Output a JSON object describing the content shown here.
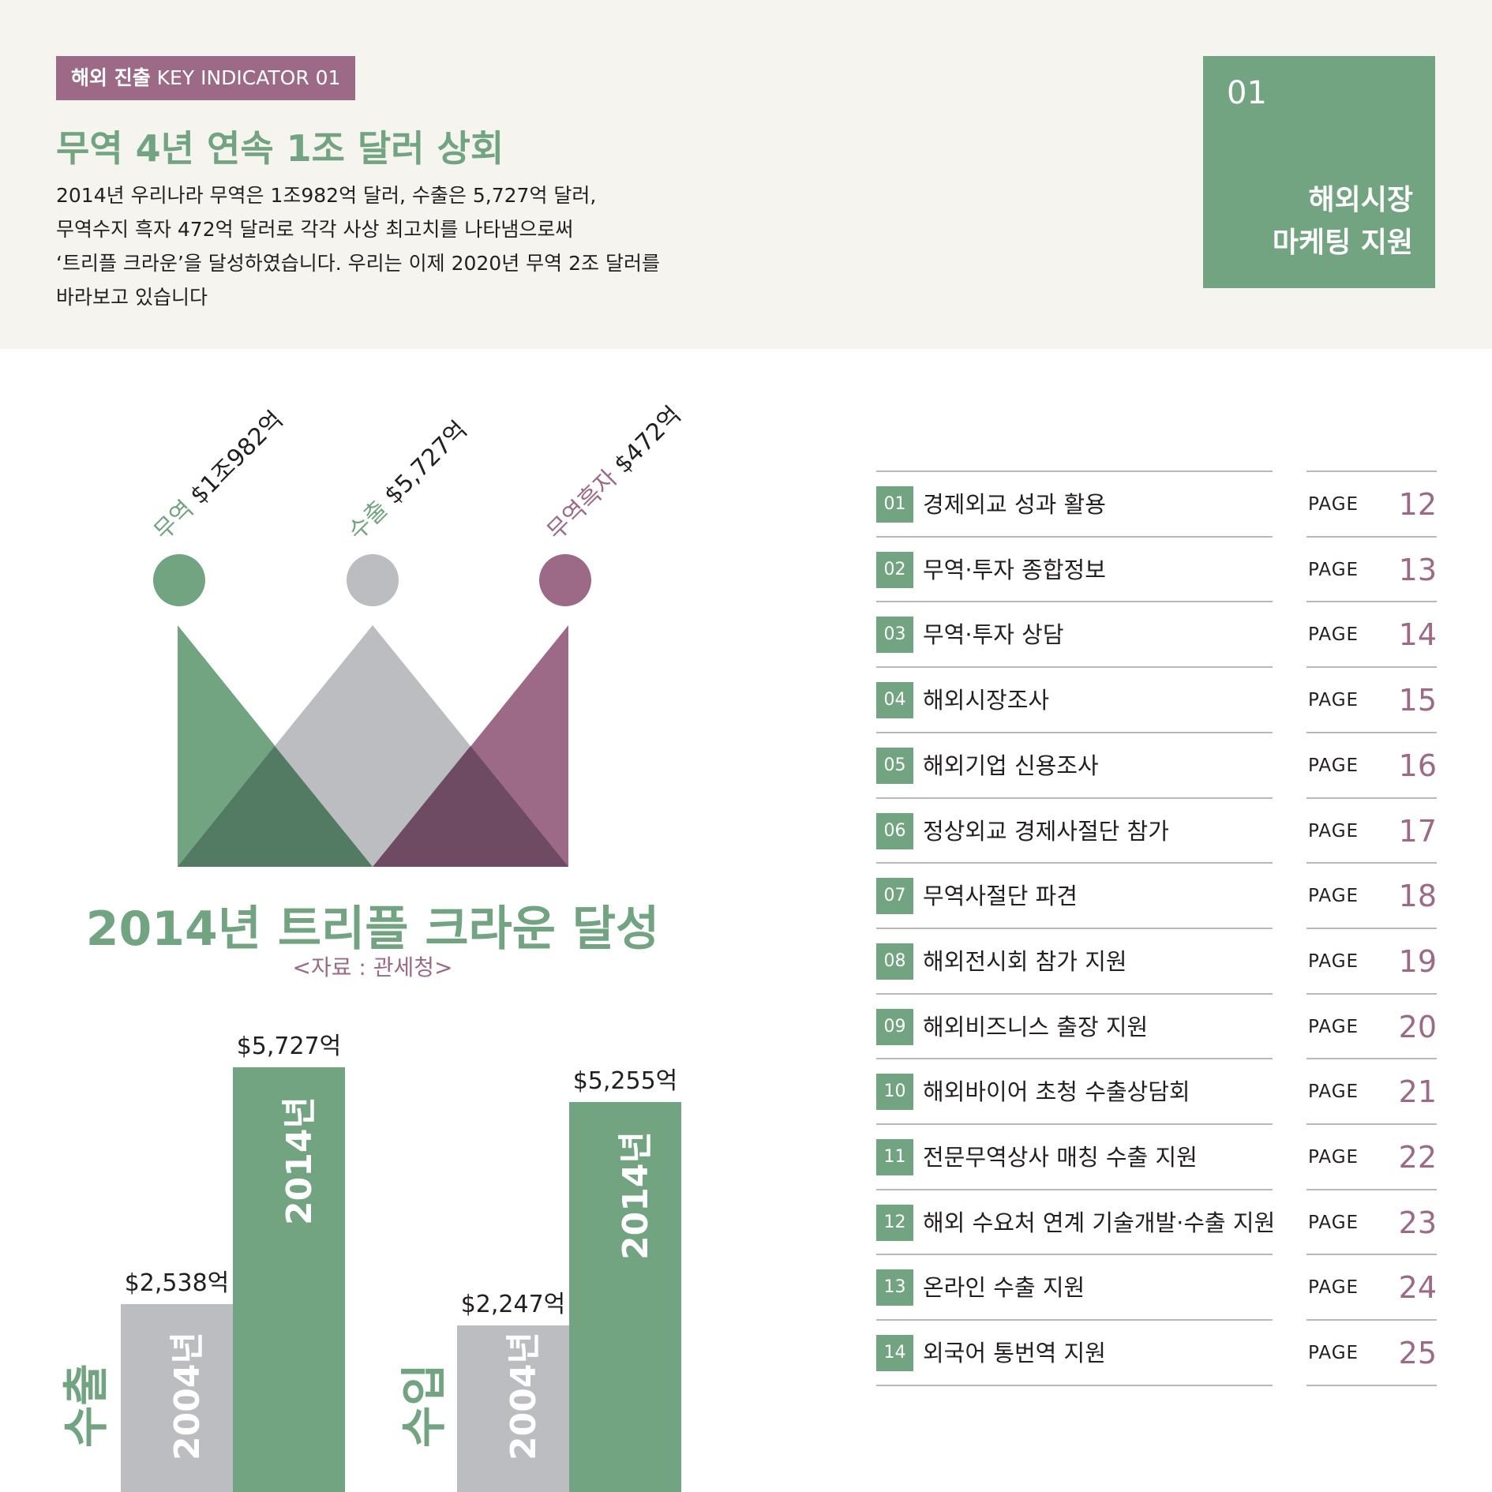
{
  "header": {
    "tag_bold": "해외 진출",
    "tag_rest": " KEY INDICATOR 01",
    "title": "무역 4년 연속 1조 달러 상회",
    "desc": [
      "2014년 우리나라 무역은 1조982억 달러, 수출은 5,727억 달러,",
      "무역수지 흑자 472억 달러로 각각 사상 최고치를 나타냄으로써",
      "‘트리플 크라운’을 달성하였습니다. 우리는 이제 2020년 무역 2조 달러를",
      "바라보고 있습니다"
    ],
    "section_number": "01",
    "section_title": [
      "해외시장",
      "마케팅 지원"
    ]
  },
  "crown": {
    "labels": [
      {
        "name": "무역",
        "value": "$1조982억",
        "color": "#72a481"
      },
      {
        "name": "수출",
        "value": "$5,727억",
        "color": "#72a481"
      },
      {
        "name": "무역흑자",
        "value": "$472억",
        "color": "#9c6a86"
      }
    ],
    "title": "2014년 트리플 크라운 달성",
    "source": "<자료 : 관세청>"
  },
  "colors": {
    "green": "#72a481",
    "gray": "#bcbdc0",
    "purple": "#9c6a86",
    "dark_green": "#537b64",
    "dark_purple": "#6e4b63",
    "header_bg": "#f5f4ef"
  },
  "chart_data": {
    "type": "bar",
    "groups": [
      {
        "name": "수출",
        "bars": [
          {
            "year": "2004년",
            "value": 2538,
            "label": "$2,538억",
            "color": "#bcbdc0"
          },
          {
            "year": "2014년",
            "value": 5727,
            "label": "$5,727억",
            "color": "#72a481"
          }
        ]
      },
      {
        "name": "수입",
        "bars": [
          {
            "year": "2004년",
            "value": 2247,
            "label": "$2,247억",
            "color": "#bcbdc0"
          },
          {
            "year": "2014년",
            "value": 5255,
            "label": "$5,255억",
            "color": "#72a481"
          }
        ]
      }
    ]
  },
  "toc": [
    {
      "num": "01",
      "label": "경제외교 성과 활용",
      "page_label": "PAGE",
      "page": "12"
    },
    {
      "num": "02",
      "label": "무역·투자 종합정보",
      "page_label": "PAGE",
      "page": "13"
    },
    {
      "num": "03",
      "label": "무역·투자 상담",
      "page_label": "PAGE",
      "page": "14"
    },
    {
      "num": "04",
      "label": "해외시장조사",
      "page_label": "PAGE",
      "page": "15"
    },
    {
      "num": "05",
      "label": "해외기업 신용조사",
      "page_label": "PAGE",
      "page": "16"
    },
    {
      "num": "06",
      "label": "정상외교 경제사절단 참가",
      "page_label": "PAGE",
      "page": "17"
    },
    {
      "num": "07",
      "label": "무역사절단 파견",
      "page_label": "PAGE",
      "page": "18"
    },
    {
      "num": "08",
      "label": "해외전시회 참가 지원",
      "page_label": "PAGE",
      "page": "19"
    },
    {
      "num": "09",
      "label": "해외비즈니스 출장 지원",
      "page_label": "PAGE",
      "page": "20"
    },
    {
      "num": "10",
      "label": "해외바이어 초청 수출상담회",
      "page_label": "PAGE",
      "page": "21"
    },
    {
      "num": "11",
      "label": "전문무역상사 매칭 수출 지원",
      "page_label": "PAGE",
      "page": "22"
    },
    {
      "num": "12",
      "label": "해외 수요처 연계 기술개발·수출 지원",
      "page_label": "PAGE",
      "page": "23"
    },
    {
      "num": "13",
      "label": "온라인 수출 지원",
      "page_label": "PAGE",
      "page": "24"
    },
    {
      "num": "14",
      "label": "외국어 통번역 지원",
      "page_label": "PAGE",
      "page": "25"
    }
  ]
}
